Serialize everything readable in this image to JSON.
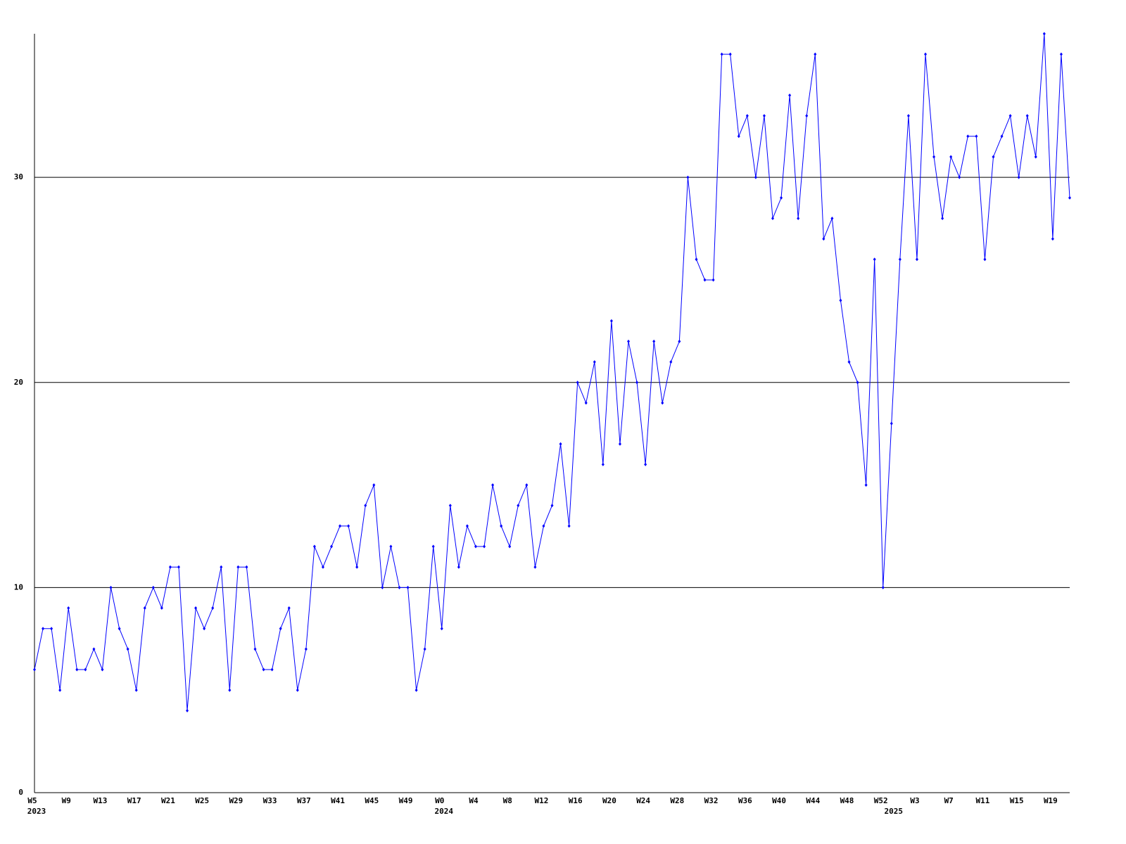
{
  "chart_data": {
    "type": "line",
    "categories": [
      "W5",
      null,
      null,
      null,
      "W9",
      null,
      null,
      null,
      "W13",
      null,
      null,
      null,
      "W17",
      null,
      null,
      null,
      "W21",
      null,
      null,
      null,
      "W25",
      null,
      null,
      null,
      "W29",
      null,
      null,
      null,
      "W33",
      null,
      null,
      null,
      "W37",
      null,
      null,
      null,
      "W41",
      null,
      null,
      null,
      "W45",
      null,
      null,
      null,
      "W49",
      null,
      null,
      null,
      "W0",
      null,
      null,
      null,
      "W4",
      null,
      null,
      null,
      "W8",
      null,
      null,
      null,
      "W12",
      null,
      null,
      null,
      "W16",
      null,
      null,
      null,
      "W20",
      null,
      null,
      null,
      "W24",
      null,
      null,
      null,
      "W28",
      null,
      null,
      null,
      "W32",
      null,
      null,
      null,
      "W36",
      null,
      null,
      null,
      "W40",
      null,
      null,
      null,
      "W44",
      null,
      null,
      null,
      "W48",
      null,
      null,
      null,
      "W52",
      null,
      null,
      null,
      "W3",
      null,
      null,
      null,
      "W7",
      null,
      null,
      null,
      "W11",
      null,
      null,
      null,
      "W15",
      null,
      null,
      null,
      "W19",
      null,
      null
    ],
    "years": [
      "2023",
      null,
      null,
      null,
      null,
      null,
      null,
      null,
      null,
      null,
      null,
      null,
      null,
      null,
      null,
      null,
      null,
      null,
      null,
      null,
      null,
      null,
      null,
      null,
      null,
      null,
      null,
      null,
      null,
      null,
      null,
      null,
      null,
      null,
      null,
      null,
      null,
      null,
      null,
      null,
      null,
      null,
      null,
      null,
      null,
      null,
      null,
      null,
      "2024",
      null,
      null,
      null,
      null,
      null,
      null,
      null,
      null,
      null,
      null,
      null,
      null,
      null,
      null,
      null,
      null,
      null,
      null,
      null,
      null,
      null,
      null,
      null,
      null,
      null,
      null,
      null,
      null,
      null,
      null,
      null,
      null,
      null,
      null,
      null,
      null,
      null,
      null,
      null,
      null,
      null,
      null,
      null,
      null,
      null,
      null,
      null,
      null,
      null,
      null,
      null,
      null,
      "2025",
      null,
      null,
      null,
      null,
      null,
      null,
      null,
      null,
      null,
      null,
      null,
      null,
      null,
      null,
      null,
      null,
      null,
      null,
      null,
      null,
      null
    ],
    "series": [
      {
        "color": "#0000ff",
        "values": [
          6,
          8,
          8,
          5,
          9,
          6,
          6,
          7,
          6,
          10,
          8,
          7,
          5,
          9,
          10,
          9,
          11,
          11,
          4,
          9,
          8,
          9,
          11,
          5,
          11,
          11,
          7,
          6,
          6,
          8,
          9,
          5,
          7,
          12,
          11,
          12,
          13,
          13,
          11,
          14,
          15,
          10,
          12,
          10,
          10,
          5,
          7,
          12,
          8,
          14,
          11,
          13,
          12,
          12,
          15,
          13,
          12,
          14,
          15,
          11,
          13,
          14,
          17,
          13,
          20,
          19,
          21,
          16,
          23,
          17,
          22,
          20,
          16,
          22,
          19,
          21,
          22,
          30,
          26,
          25,
          25,
          36,
          36,
          32,
          33,
          30,
          33,
          28,
          29,
          34,
          28,
          33,
          36,
          27,
          28,
          24,
          21,
          20,
          15,
          26,
          10,
          18,
          26,
          33,
          26,
          36,
          31,
          28,
          31,
          30,
          32,
          32,
          26,
          31,
          32,
          33,
          30,
          33,
          31,
          37,
          27,
          36,
          29
        ]
      }
    ],
    "ylim": [
      0,
      37
    ],
    "yticks": [
      0,
      10,
      20,
      30
    ],
    "grid": true
  }
}
